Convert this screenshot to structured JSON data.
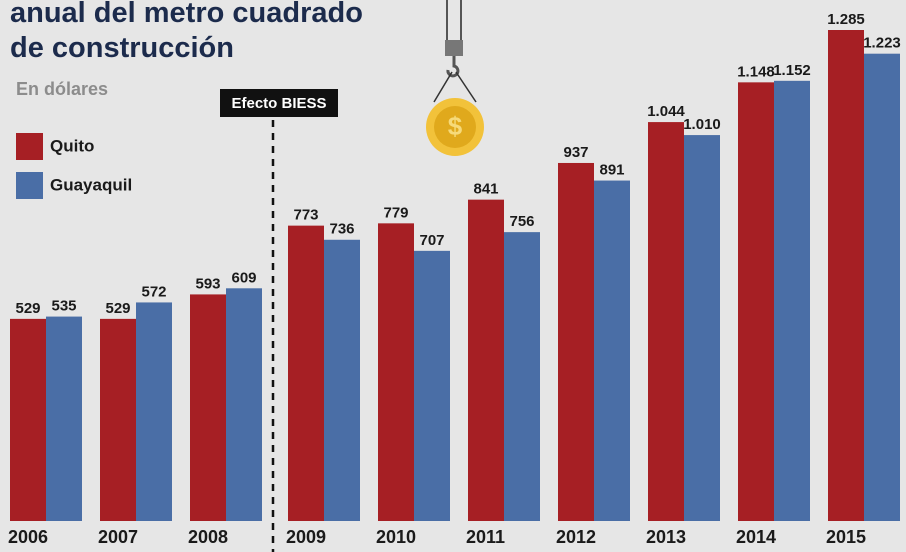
{
  "chart_data": {
    "type": "bar",
    "title": [
      "anual del metro cuadrado",
      "de construcción"
    ],
    "subtitle": "En dólares",
    "annotation": "Efecto BIESS",
    "categories": [
      "2006",
      "2007",
      "2008",
      "2009",
      "2010",
      "2011",
      "2012",
      "2013",
      "2014",
      "2015"
    ],
    "series": [
      {
        "name": "Quito",
        "color": "#a61f24",
        "values": [
          529,
          529,
          593,
          773,
          779,
          841,
          937,
          1044,
          1148,
          1285
        ],
        "value_labels": [
          "529",
          "529",
          "593",
          "773",
          "779",
          "841",
          "937",
          "1.044",
          "1.148",
          "1.285"
        ]
      },
      {
        "name": "Guayaquil",
        "color": "#4a6ea6",
        "values": [
          535,
          572,
          609,
          736,
          707,
          756,
          891,
          1010,
          1152,
          1223
        ],
        "value_labels": [
          "535",
          "572",
          "609",
          "736",
          "707",
          "756",
          "891",
          "1.010",
          "1.152",
          "1.223"
        ]
      }
    ]
  }
}
